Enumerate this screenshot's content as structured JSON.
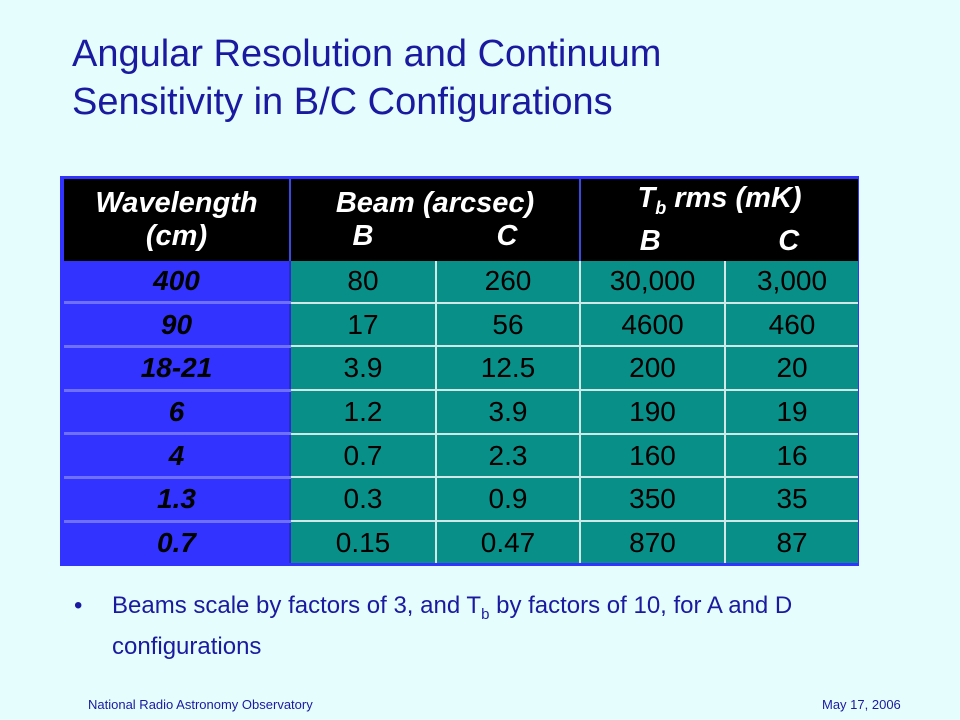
{
  "slide": {
    "title_line1": "Angular Resolution and Continuum",
    "title_line2": "Sensitivity in B/C Configurations"
  },
  "table": {
    "header": {
      "wavelength_line1": "Wavelength",
      "wavelength_line2": "(cm)",
      "beam_line1": "Beam (arcsec)",
      "beam_b": "B",
      "beam_c": "C",
      "tb_prefix": "T",
      "tb_sub": "b",
      "tb_suffix": " rms (mK)",
      "tb_b": "B",
      "tb_c": "C"
    },
    "rows": [
      {
        "wavelength": "400",
        "beam_b": "80",
        "beam_c": "260",
        "tb_b": "30,000",
        "tb_c": "3,000"
      },
      {
        "wavelength": "90",
        "beam_b": "17",
        "beam_c": "56",
        "tb_b": "4600",
        "tb_c": "460"
      },
      {
        "wavelength": "18-21",
        "beam_b": "3.9",
        "beam_c": "12.5",
        "tb_b": "200",
        "tb_c": "20"
      },
      {
        "wavelength": "6",
        "beam_b": "1.2",
        "beam_c": "3.9",
        "tb_b": "190",
        "tb_c": "19"
      },
      {
        "wavelength": "4",
        "beam_b": "0.7",
        "beam_c": "2.3",
        "tb_b": "160",
        "tb_c": "16"
      },
      {
        "wavelength": "1.3",
        "beam_b": "0.3",
        "beam_c": "0.9",
        "tb_b": "350",
        "tb_c": "35"
      },
      {
        "wavelength": "0.7",
        "beam_b": "0.15",
        "beam_c": "0.47",
        "tb_b": "870",
        "tb_c": "87"
      }
    ]
  },
  "bullet": {
    "dot": "•",
    "part1": "Beams scale by factors of 3, and T",
    "sub": "b",
    "part2": " by factors of 10, for A and D configurations"
  },
  "footer": {
    "left": "National Radio Astronomy Observatory",
    "right": "May 17, 2006"
  },
  "colors": {
    "background": "#e6fdfd",
    "title": "#1a1aa0",
    "header_bg": "#000000",
    "label_bg": "#3333ff",
    "value_bg": "#088f88"
  }
}
